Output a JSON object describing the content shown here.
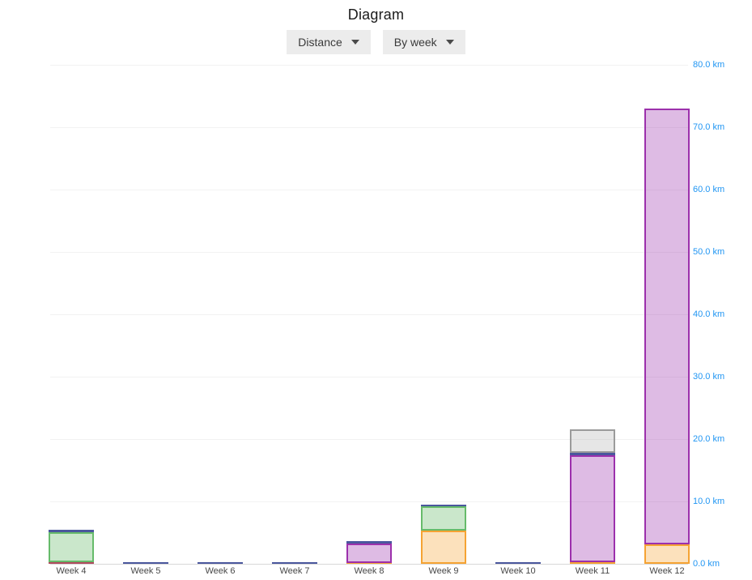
{
  "title": "Diagram",
  "controls": {
    "metric_dropdown": {
      "label": "Distance"
    },
    "grouping_dropdown": {
      "label": "By week"
    }
  },
  "chart_data": {
    "type": "bar",
    "stacked": true,
    "unit": "km",
    "legend": "none",
    "grid": "horizontal",
    "y_axis_side": "right",
    "ylim": [
      0,
      80
    ],
    "y_tick_step": 10,
    "y_tick_labels": [
      "0.0 km",
      "10.0 km",
      "20.0 km",
      "30.0 km",
      "40.0 km",
      "50.0 km",
      "60.0 km",
      "70.0 km",
      "80.0 km"
    ],
    "categories": [
      "Week 4",
      "Week 5",
      "Week 6",
      "Week 7",
      "Week 8",
      "Week 9",
      "Week 10",
      "Week 11",
      "Week 12"
    ],
    "series": [
      {
        "name": "red",
        "border": "#b04a5e",
        "fill": "rgba(176,74,94,0.35)",
        "values": [
          0.3,
          0,
          0,
          0,
          0,
          0,
          0,
          0,
          0
        ]
      },
      {
        "name": "orange",
        "border": "#f5a333",
        "fill": "rgba(245,163,51,0.33)",
        "values": [
          0,
          0,
          0,
          0,
          0.1,
          5.3,
          0,
          0.2,
          3.1
        ]
      },
      {
        "name": "green",
        "border": "#66bb6a",
        "fill": "rgba(102,187,106,0.35)",
        "values": [
          4.8,
          0,
          0,
          0,
          0,
          3.9,
          0,
          0,
          0
        ]
      },
      {
        "name": "purple",
        "border": "#9c30ac",
        "fill": "rgba(156,48,172,0.33)",
        "values": [
          0,
          0,
          0,
          0,
          3.1,
          0,
          0,
          17.2,
          69.9
        ]
      },
      {
        "name": "indigo",
        "border": "#4a579d",
        "fill": "rgba(74,87,157,0.45)",
        "values": [
          0.4,
          0.3,
          0.3,
          0.3,
          0.4,
          0.3,
          0.3,
          0.4,
          0
        ]
      },
      {
        "name": "gray",
        "border": "#9b9b9b",
        "fill": "rgba(155,155,155,0.25)",
        "values": [
          0,
          0,
          0,
          0,
          0,
          0,
          0,
          3.8,
          0
        ]
      }
    ],
    "totals": [
      5.5,
      0.3,
      0.3,
      0.3,
      3.6,
      9.5,
      0.3,
      21.6,
      73.0
    ],
    "colors": {
      "tick_label": "#2196f3",
      "grid": "#f2f2f2",
      "baseline": "#d8d8d8",
      "x_label": "#474747"
    }
  }
}
